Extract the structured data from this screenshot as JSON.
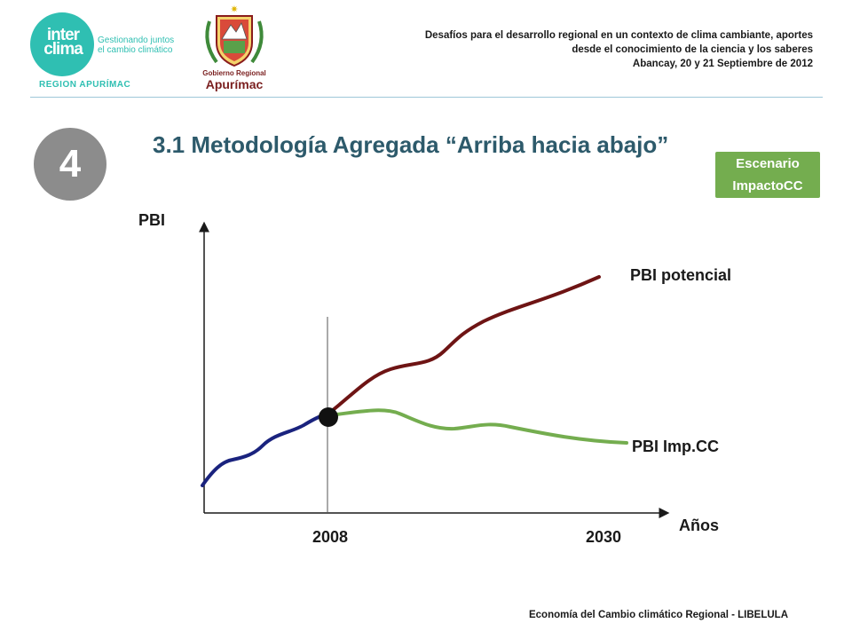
{
  "header": {
    "logo_word": "inter clima",
    "logo_tagline": "Gestionando juntos el cambio climático",
    "region": "REGION APURÍMAC",
    "gob_line1": "Gobierno Regional",
    "gob_line2": "Apurímac",
    "conference_lines": [
      "Desafíos para el desarrollo regional en un contexto de clima cambiante, aportes",
      "desde el conocimiento de la ciencia y los saberes",
      "Abancay, 20 y 21 Septiembre de 2012"
    ]
  },
  "slide": {
    "step_number": "4",
    "title": "3.1 Metodología Agregada “Arriba hacia abajo”",
    "scenario_badge": [
      "Escenario",
      "ImpactoCC"
    ]
  },
  "chart_data": {
    "type": "line",
    "ylabel": "PBI",
    "xlabel": "Años",
    "x_ticks": [
      "2008",
      "2030"
    ],
    "series": [
      {
        "name": "PBI potencial",
        "color": "#6e1414"
      },
      {
        "name": "PBI Imp.CC",
        "color": "#74ad4f"
      },
      {
        "name": "",
        "color": "#1a237e"
      }
    ],
    "axis_color": "#1a1a1a"
  },
  "footer": {
    "text": "Economía del Cambio climático Regional - LIBELULA"
  }
}
